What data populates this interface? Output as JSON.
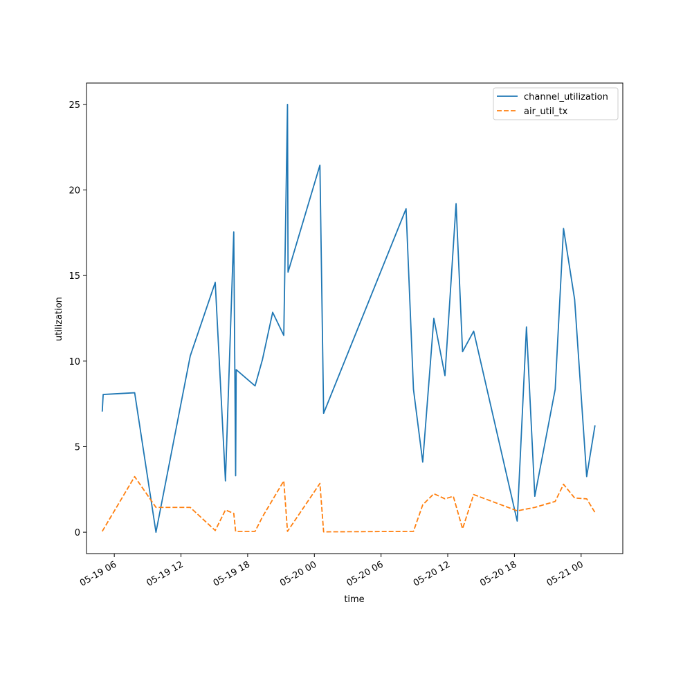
{
  "chart_data": {
    "type": "line",
    "title": "",
    "xlabel": "time",
    "ylabel": "utilization",
    "x_axis_type": "datetime",
    "xlim": [
      "2025-05-19 03:30",
      "2025-05-21 03:45"
    ],
    "ylim": [
      -1.25,
      26.25
    ],
    "x_ticks": [
      {
        "t": "2025-05-19 06:00",
        "label": "05-19 06"
      },
      {
        "t": "2025-05-19 12:00",
        "label": "05-19 12"
      },
      {
        "t": "2025-05-19 18:00",
        "label": "05-19 18"
      },
      {
        "t": "2025-05-20 00:00",
        "label": "05-20 00"
      },
      {
        "t": "2025-05-20 06:00",
        "label": "05-20 06"
      },
      {
        "t": "2025-05-20 12:00",
        "label": "05-20 12"
      },
      {
        "t": "2025-05-20 18:00",
        "label": "05-20 18"
      },
      {
        "t": "2025-05-21 00:00",
        "label": "05-21 00"
      }
    ],
    "y_ticks": [
      0,
      5,
      10,
      15,
      20,
      25
    ],
    "grid": false,
    "legend_position": "top-right",
    "series": [
      {
        "name": "channel_utilization",
        "color": "#1f77b4",
        "dash": "solid",
        "points": [
          [
            "2025-05-19 04:55",
            7.05
          ],
          [
            "2025-05-19 05:00",
            8.05
          ],
          [
            "2025-05-19 07:50",
            8.15
          ],
          [
            "2025-05-19 09:45",
            0.0
          ],
          [
            "2025-05-19 12:50",
            10.3
          ],
          [
            "2025-05-19 15:05",
            14.6
          ],
          [
            "2025-05-19 16:00",
            3.0
          ],
          [
            "2025-05-19 16:45",
            17.55
          ],
          [
            "2025-05-19 16:55",
            3.3
          ],
          [
            "2025-05-19 16:58",
            9.5
          ],
          [
            "2025-05-19 18:40",
            8.55
          ],
          [
            "2025-05-19 19:20",
            10.1
          ],
          [
            "2025-05-19 20:15",
            12.85
          ],
          [
            "2025-05-19 21:15",
            11.5
          ],
          [
            "2025-05-19 21:35",
            25.0
          ],
          [
            "2025-05-19 21:38",
            15.2
          ],
          [
            "2025-05-20 00:30",
            21.45
          ],
          [
            "2025-05-20 00:50",
            6.95
          ],
          [
            "2025-05-20 08:15",
            18.9
          ],
          [
            "2025-05-20 08:55",
            8.35
          ],
          [
            "2025-05-20 09:45",
            4.1
          ],
          [
            "2025-05-20 10:45",
            12.5
          ],
          [
            "2025-05-20 11:45",
            9.15
          ],
          [
            "2025-05-20 12:45",
            19.2
          ],
          [
            "2025-05-20 13:20",
            10.55
          ],
          [
            "2025-05-20 14:20",
            11.75
          ],
          [
            "2025-05-20 18:15",
            0.65
          ],
          [
            "2025-05-20 19:05",
            12.0
          ],
          [
            "2025-05-20 19:50",
            2.1
          ],
          [
            "2025-05-20 21:40",
            8.35
          ],
          [
            "2025-05-20 22:25",
            17.75
          ],
          [
            "2025-05-20 23:25",
            13.6
          ],
          [
            "2025-05-21 00:30",
            3.25
          ],
          [
            "2025-05-21 01:15",
            6.25
          ]
        ]
      },
      {
        "name": "air_util_tx",
        "color": "#ff7f0e",
        "dash": "dashed",
        "points": [
          [
            "2025-05-19 04:55",
            0.05
          ],
          [
            "2025-05-19 07:50",
            3.25
          ],
          [
            "2025-05-19 09:45",
            1.45
          ],
          [
            "2025-05-19 12:50",
            1.45
          ],
          [
            "2025-05-19 15:05",
            0.1
          ],
          [
            "2025-05-19 16:00",
            1.3
          ],
          [
            "2025-05-19 16:45",
            1.1
          ],
          [
            "2025-05-19 16:55",
            0.05
          ],
          [
            "2025-05-19 18:40",
            0.05
          ],
          [
            "2025-05-19 19:20",
            0.9
          ],
          [
            "2025-05-19 21:15",
            3.0
          ],
          [
            "2025-05-19 21:35",
            0.05
          ],
          [
            "2025-05-20 00:30",
            2.85
          ],
          [
            "2025-05-20 00:50",
            0.02
          ],
          [
            "2025-05-20 08:55",
            0.05
          ],
          [
            "2025-05-20 09:45",
            1.6
          ],
          [
            "2025-05-20 10:45",
            2.25
          ],
          [
            "2025-05-20 11:45",
            1.95
          ],
          [
            "2025-05-20 12:30",
            2.1
          ],
          [
            "2025-05-20 13:20",
            0.2
          ],
          [
            "2025-05-20 14:20",
            2.2
          ],
          [
            "2025-05-20 18:15",
            1.25
          ],
          [
            "2025-05-20 19:50",
            1.45
          ],
          [
            "2025-05-20 21:40",
            1.8
          ],
          [
            "2025-05-20 22:25",
            2.8
          ],
          [
            "2025-05-20 23:25",
            2.0
          ],
          [
            "2025-05-21 00:30",
            1.95
          ],
          [
            "2025-05-21 01:15",
            1.15
          ]
        ]
      }
    ]
  }
}
